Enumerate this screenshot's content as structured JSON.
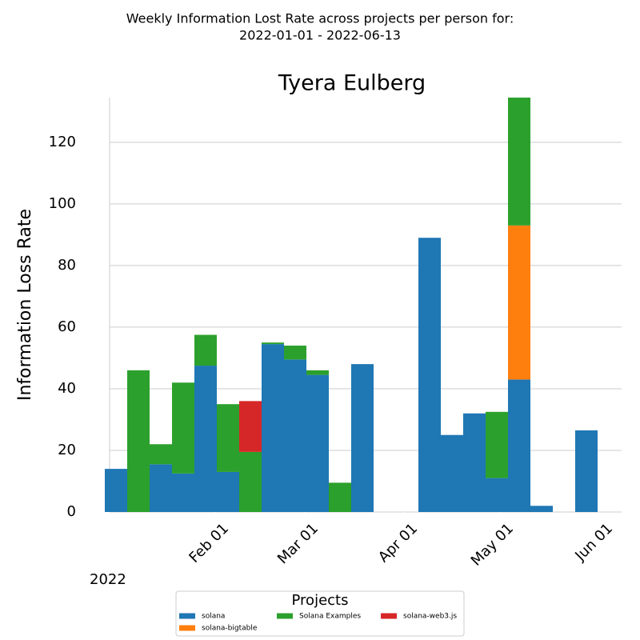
{
  "chart_data": {
    "type": "stacked_bar",
    "suptitle": [
      "Weekly Information Lost Rate across projects per person for:",
      "2022-01-01 - 2022-06-13"
    ],
    "title": "Tyera Eulberg",
    "y_label": "Information Loss Rate",
    "x_offset_label": "2022",
    "legend_title": "Projects",
    "legend": "bottom",
    "grid": true,
    "x": [
      "2022-01-01",
      "2022-01-08",
      "2022-01-15",
      "2022-01-22",
      "2022-01-29",
      "2022-02-05",
      "2022-02-12",
      "2022-02-19",
      "2022-02-26",
      "2022-03-05",
      "2022-03-12",
      "2022-03-19",
      "2022-03-26",
      "2022-04-02",
      "2022-04-09",
      "2022-04-16",
      "2022-04-23",
      "2022-04-30",
      "2022-05-07",
      "2022-05-14",
      "2022-05-21",
      "2022-05-28"
    ],
    "series": [
      {
        "name": "solana",
        "color": "#1f77b4",
        "values": [
          14,
          0,
          15.5,
          12.5,
          47.5,
          13,
          0,
          54.5,
          49.5,
          44.5,
          0,
          48,
          0,
          0,
          89,
          25,
          32,
          11,
          43,
          2,
          0,
          26.5
        ]
      },
      {
        "name": "solana-bigtable",
        "color": "#ff7f0e",
        "values": [
          0,
          0,
          0,
          0,
          0,
          0,
          0,
          0,
          0,
          0,
          0,
          0,
          0,
          0,
          0,
          0,
          0,
          0,
          50,
          0,
          0,
          0
        ]
      },
      {
        "name": "Solana Examples",
        "color": "#2ca02c",
        "values": [
          0,
          46,
          6.5,
          29.5,
          10,
          22,
          19.5,
          0.5,
          4.5,
          1.5,
          9.5,
          0,
          0,
          0,
          0,
          0,
          0,
          21.5,
          41.5,
          0,
          0,
          0
        ]
      },
      {
        "name": "solana-web3.js",
        "color": "#d62728",
        "values": [
          0,
          0,
          0,
          0,
          0,
          0,
          16.5,
          0,
          0,
          0,
          0,
          0,
          0,
          0,
          0,
          0,
          0,
          0,
          0,
          0,
          0,
          0
        ]
      }
    ],
    "xlim": [
      "2021-12-28",
      "2022-06-08"
    ],
    "xticks": [
      {
        "value": "2022-02-01",
        "label": "Feb 01"
      },
      {
        "value": "2022-03-01",
        "label": "Mar 01"
      },
      {
        "value": "2022-04-01",
        "label": "Apr 01"
      },
      {
        "value": "2022-05-01",
        "label": "May 01"
      },
      {
        "value": "2022-06-01",
        "label": "Jun 01"
      }
    ],
    "ylim": [
      0,
      134.5
    ],
    "yticks": [
      0,
      20,
      40,
      60,
      80,
      100,
      120
    ]
  }
}
